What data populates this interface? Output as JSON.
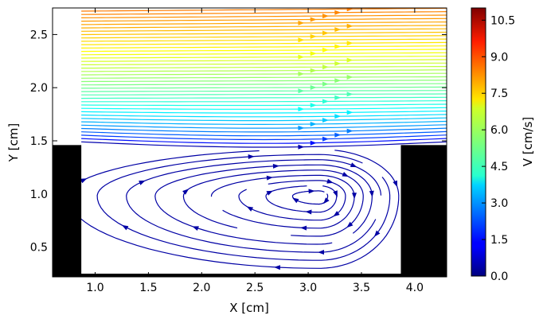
{
  "chart_data": {
    "type": "streamplot",
    "xlabel": "X [cm]",
    "ylabel": "Y [cm]",
    "xlim": [
      0.6,
      4.3
    ],
    "ylim": [
      0.22,
      2.75
    ],
    "xticks": [
      1.0,
      1.5,
      2.0,
      2.5,
      3.0,
      3.5,
      4.0
    ],
    "xtick_labels": [
      "1.0",
      "1.5",
      "2.0",
      "2.5",
      "3.0",
      "3.5",
      "4.0"
    ],
    "yticks": [
      0.5,
      1.0,
      1.5,
      2.0,
      2.5
    ],
    "ytick_labels": [
      "0.5",
      "1.0",
      "1.5",
      "2.0",
      "2.5"
    ],
    "colorbar": {
      "label": "V [cm/s]",
      "range": [
        0.0,
        11.0
      ],
      "ticks": [
        0.0,
        1.5,
        3.0,
        4.5,
        6.0,
        7.5,
        9.0,
        10.5
      ],
      "tick_labels": [
        "0.0",
        "1.5",
        "3.0",
        "4.5",
        "6.0",
        "7.5",
        "9.0",
        "10.5"
      ],
      "colormap": "jet"
    },
    "obstacles": [
      {
        "name": "left-step",
        "x": [
          0.6,
          0.87
        ],
        "y": [
          0.22,
          1.46
        ]
      },
      {
        "name": "right-step",
        "x": [
          3.87,
          4.3
        ],
        "y": [
          0.22,
          1.46
        ]
      },
      {
        "name": "floor",
        "x": [
          0.6,
          4.3
        ],
        "y": [
          0.22,
          0.25
        ]
      }
    ],
    "free_stream": {
      "x_range": [
        0.87,
        4.3
      ],
      "y_range": [
        1.46,
        2.72
      ],
      "speed_bottom": 0.5,
      "speed_top": 8.3
    },
    "vortex": {
      "center": [
        3.1,
        0.98
      ],
      "x_range": [
        0.9,
        3.85
      ],
      "y_range": [
        0.3,
        1.42
      ],
      "speed": 0.4
    }
  }
}
